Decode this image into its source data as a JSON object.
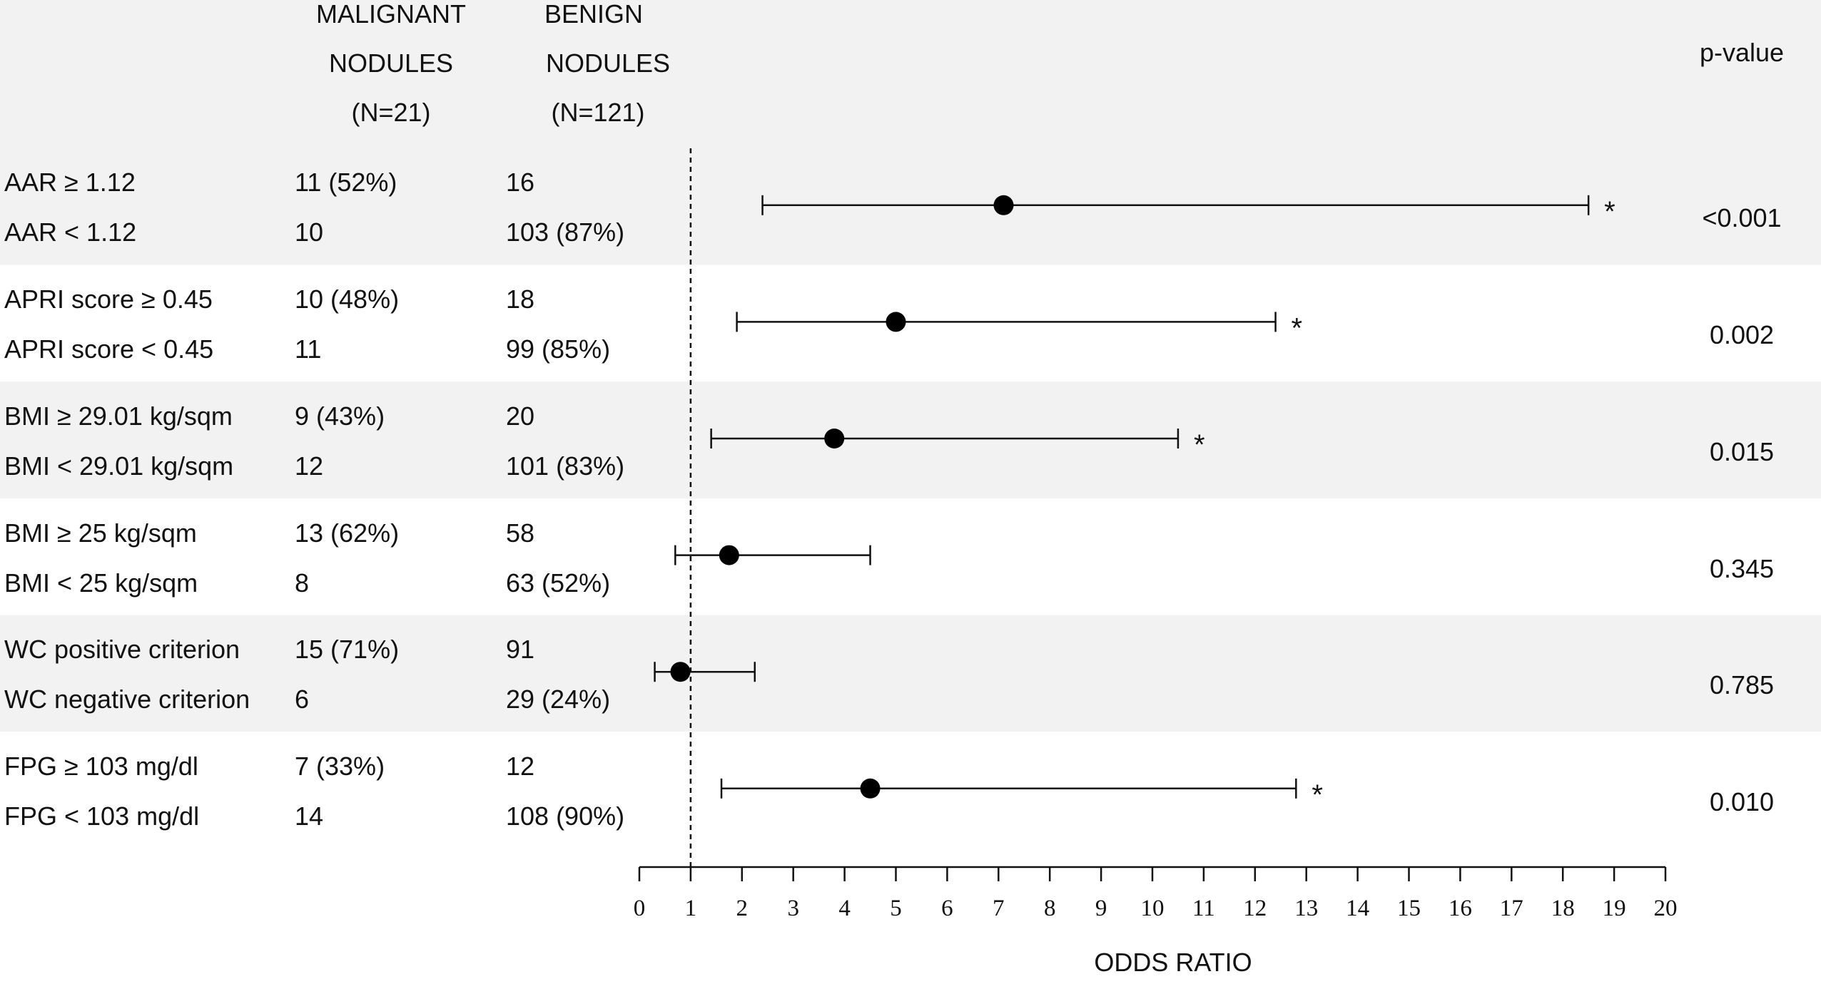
{
  "header": {
    "malignant_line1": "MALIGNANT",
    "malignant_line2": "NODULES",
    "malignant_line3": "(N=21)",
    "benign_line1": "BENIGN",
    "benign_line2": "NODULES",
    "benign_line3": "(N=121)",
    "pvalue": "p-value"
  },
  "rows": [
    {
      "label_hi": "AAR ≥ 1.12",
      "label_lo": "AAR < 1.12",
      "mal_hi": "11 (52%)",
      "mal_lo": "10",
      "ben_hi": "16",
      "ben_lo": "103 (87%)",
      "pvalue": "<0.001"
    },
    {
      "label_hi": "APRI score ≥ 0.45",
      "label_lo": "APRI score < 0.45",
      "mal_hi": "10 (48%)",
      "mal_lo": "11",
      "ben_hi": "18",
      "ben_lo": "99 (85%)",
      "pvalue": "0.002"
    },
    {
      "label_hi": "BMI ≥ 29.01 kg/sqm",
      "label_lo": "BMI < 29.01 kg/sqm",
      "mal_hi": "9 (43%)",
      "mal_lo": "12",
      "ben_hi": "20",
      "ben_lo": "101 (83%)",
      "pvalue": "0.015"
    },
    {
      "label_hi": "BMI ≥ 25 kg/sqm",
      "label_lo": "BMI < 25 kg/sqm",
      "mal_hi": "13 (62%)",
      "mal_lo": "8",
      "ben_hi": "58",
      "ben_lo": "63 (52%)",
      "pvalue": "0.345"
    },
    {
      "label_hi": "WC positive criterion",
      "label_lo": "WC negative criterion",
      "mal_hi": "15 (71%)",
      "mal_lo": "6",
      "ben_hi": "91",
      "ben_lo": "29 (24%)",
      "pvalue": "0.785"
    },
    {
      "label_hi": "FPG ≥ 103 mg/dl",
      "label_lo": "FPG < 103 mg/dl",
      "mal_hi": "7 (33%)",
      "mal_lo": "14",
      "ben_hi": "12",
      "ben_lo": "108 (90%)",
      "pvalue": "0.010"
    }
  ],
  "chart_data": {
    "type": "forest",
    "xlabel": "ODDS RATIO",
    "xlim": [
      0,
      20
    ],
    "xticks": [
      0,
      1,
      2,
      3,
      4,
      5,
      6,
      7,
      8,
      9,
      10,
      11,
      12,
      13,
      14,
      15,
      16,
      17,
      18,
      19,
      20
    ],
    "reference_line": 1,
    "series": [
      {
        "or": 7.1,
        "ci": [
          2.4,
          18.5
        ],
        "sig": "*"
      },
      {
        "or": 5.0,
        "ci": [
          1.9,
          12.4
        ],
        "sig": "*"
      },
      {
        "or": 3.8,
        "ci": [
          1.4,
          10.5
        ],
        "sig": "*"
      },
      {
        "or": 1.75,
        "ci": [
          0.7,
          4.5
        ],
        "sig": ""
      },
      {
        "or": 0.8,
        "ci": [
          0.3,
          2.25
        ],
        "sig": ""
      },
      {
        "or": 4.5,
        "ci": [
          1.6,
          12.8
        ],
        "sig": "*"
      }
    ],
    "band_colors": [
      "#f2f2f2",
      "#ffffff"
    ]
  }
}
